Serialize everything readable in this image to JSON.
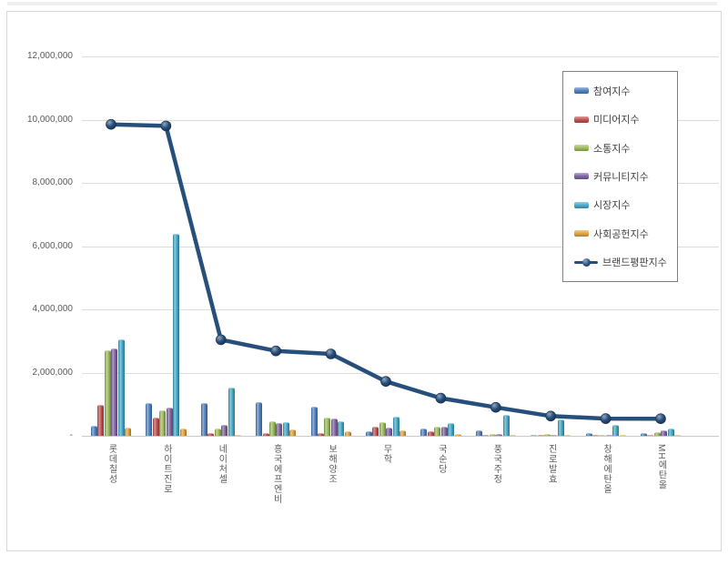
{
  "colors": {
    "grid": "#DCDCDC",
    "axis_text": "#595959",
    "frame_border": "#D8D8D8",
    "legend_border": "#7F7F7F",
    "baseline": "#C9C9C9"
  },
  "chart_data": {
    "type": "bar",
    "title": "",
    "xlabel": "",
    "ylabel": "",
    "grid": true,
    "legend_position": "upper-right",
    "ylim": [
      0,
      12000000
    ],
    "yticks": [
      {
        "value": 0,
        "label": "-"
      },
      {
        "value": 2000000,
        "label": "2,000,000"
      },
      {
        "value": 4000000,
        "label": "4,000,000"
      },
      {
        "value": 6000000,
        "label": "6,000,000"
      },
      {
        "value": 8000000,
        "label": "8,000,000"
      },
      {
        "value": 10000000,
        "label": "10,000,000"
      },
      {
        "value": 12000000,
        "label": "12,000,000"
      }
    ],
    "categories": [
      "롯데칠성",
      "하이트진로",
      "네이처셀",
      "흥국에프엔비",
      "보해양조",
      "무학",
      "국순당",
      "풍국주정",
      "진로발효",
      "창해에탄올",
      "MH에탄올"
    ],
    "series": [
      {
        "name": "참여지수",
        "type": "bar",
        "color": "#4F81BD",
        "values": [
          310000,
          1040000,
          1030000,
          1055000,
          935000,
          145000,
          225000,
          175000,
          40000,
          95000,
          75000
        ]
      },
      {
        "name": "미디어지수",
        "type": "bar",
        "color": "#C0504D",
        "values": [
          985000,
          580000,
          100000,
          80000,
          80000,
          290000,
          145000,
          40000,
          30000,
          25000,
          30000
        ]
      },
      {
        "name": "소통지수",
        "type": "bar",
        "color": "#9BBB59",
        "values": [
          2720000,
          810000,
          240000,
          450000,
          580000,
          435000,
          300000,
          70000,
          50000,
          40000,
          110000
        ]
      },
      {
        "name": "커뮤니티지수",
        "type": "bar",
        "color": "#8064A2",
        "values": [
          2750000,
          890000,
          335000,
          405000,
          560000,
          260000,
          280000,
          60000,
          40000,
          35000,
          165000
        ]
      },
      {
        "name": "시장지수",
        "type": "bar",
        "color": "#44A8C8",
        "values": [
          3040000,
          6380000,
          1535000,
          425000,
          470000,
          610000,
          415000,
          675000,
          520000,
          345000,
          230000
        ]
      },
      {
        "name": "사회공헌지수",
        "type": "bar",
        "color": "#E3A13D",
        "values": [
          270000,
          240000,
          30000,
          210000,
          150000,
          165000,
          50000,
          30000,
          20000,
          20000,
          25000
        ]
      },
      {
        "name": "브랜드평판지수",
        "type": "line",
        "color": "#274F7C",
        "values": [
          9850000,
          9800000,
          3040000,
          2685000,
          2590000,
          1720000,
          1190000,
          900000,
          625000,
          545000,
          540000
        ]
      }
    ]
  }
}
